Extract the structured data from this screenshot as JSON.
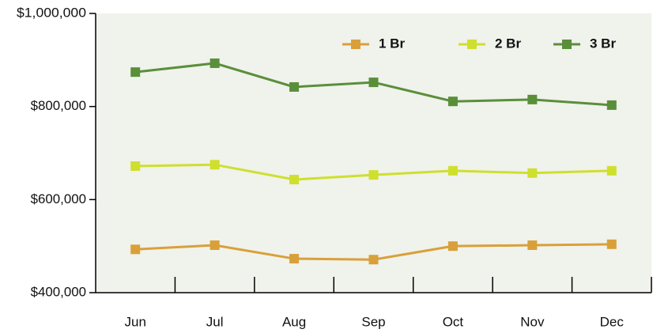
{
  "chart_data": {
    "type": "line",
    "categories": [
      "Jun",
      "Jul",
      "Aug",
      "Sep",
      "Oct",
      "Nov",
      "Dec"
    ],
    "series": [
      {
        "name": "1 Br",
        "color": "#d9a03a",
        "values": [
          493000,
          502000,
          473000,
          471000,
          500000,
          502000,
          504000
        ]
      },
      {
        "name": "2 Br",
        "color": "#cfdf2e",
        "values": [
          672000,
          675000,
          643000,
          653000,
          662000,
          657000,
          662000
        ]
      },
      {
        "name": "3 Br",
        "color": "#5a8f3a",
        "values": [
          874000,
          893000,
          842000,
          852000,
          811000,
          815000,
          803000
        ]
      }
    ],
    "ylim": [
      400000,
      1000000
    ],
    "yticks": [
      {
        "value": 400000,
        "label": "$400,000"
      },
      {
        "value": 600000,
        "label": "$600,000"
      },
      {
        "value": 800000,
        "label": "$800,000"
      },
      {
        "value": 1000000,
        "label": "$1,000,000"
      }
    ],
    "legend": "top-right",
    "background": "#f0f2ec"
  }
}
